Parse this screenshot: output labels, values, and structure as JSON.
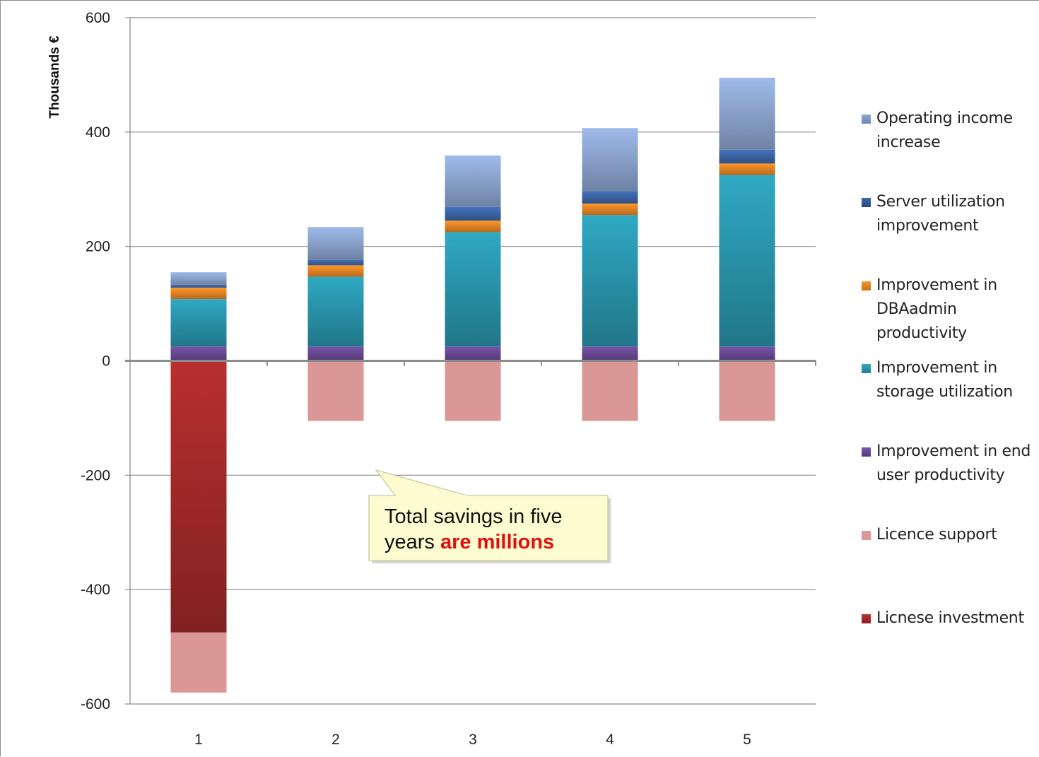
{
  "chart_data": {
    "type": "bar",
    "stacked": true,
    "title": "",
    "xlabel": "",
    "ylabel": "Thousands €",
    "ylim": [
      -600,
      600
    ],
    "yticks": [
      600,
      400,
      200,
      0,
      -200,
      -400,
      -600
    ],
    "categories": [
      "1",
      "2",
      "3",
      "4",
      "5"
    ],
    "grid": true,
    "legend_position": "right",
    "series": [
      {
        "name": "Licnese investment",
        "color": "#a52a2a",
        "values": [
          -475,
          0,
          0,
          0,
          0
        ]
      },
      {
        "name": "Licence support",
        "color": "#db9696",
        "values": [
          -105,
          -105,
          -105,
          -105,
          -105
        ]
      },
      {
        "name": "Improvement in end user productivity",
        "color": "#6a4a96",
        "values": [
          25,
          25,
          25,
          25,
          25
        ]
      },
      {
        "name": "Improvement in storage utilization",
        "color": "#2a97ae",
        "values": [
          83,
          122,
          200,
          230,
          300
        ]
      },
      {
        "name": "Improvement in DBAadmin productivity",
        "color": "#e98725",
        "values": [
          20,
          20,
          20,
          20,
          20
        ]
      },
      {
        "name": "Server utilization improvement",
        "color": "#3d67a8",
        "values": [
          5,
          10,
          24,
          22,
          24
        ]
      },
      {
        "name": "Operating income increase",
        "color": "#8ea7d2",
        "values": [
          22,
          57,
          90,
          110,
          126
        ]
      }
    ],
    "legend_order": [
      "Operating income increase",
      "Server utilization improvement",
      "Improvement in DBAadmin productivity",
      "Improvement in storage utilization",
      "Improvement in end user productivity",
      "Licence support",
      "Licnese investment"
    ],
    "annotation": {
      "text_plain": "Total savings in five years ",
      "text_highlight": "are millions",
      "highlight_color": "#e01010",
      "box_color": "#fdfbd0"
    }
  },
  "legend": {
    "items": [
      {
        "line1": "Operating income",
        "line2": "increase",
        "line3": "",
        "color": "#8ea7d2"
      },
      {
        "line1": "Server utilization",
        "line2": "improvement",
        "line3": "",
        "color": "#3d67a8"
      },
      {
        "line1": "Improvement in",
        "line2": "DBAadmin",
        "line3": "productivity",
        "color": "#e98725"
      },
      {
        "line1": "Improvement in",
        "line2": "storage utilization",
        "line3": "",
        "color": "#2a97ae"
      },
      {
        "line1": "Improvement in end",
        "line2": "user productivity",
        "line3": "",
        "color": "#6a4a96"
      },
      {
        "line1": "Licence support",
        "line2": "",
        "line3": "",
        "color": "#db9696"
      },
      {
        "line1": "Licnese investment",
        "line2": "",
        "line3": "",
        "color": "#a52a2a"
      }
    ]
  },
  "callout": {
    "line1": "Total savings in five",
    "line2_plain": "years ",
    "line2_highlight": "are millions"
  }
}
